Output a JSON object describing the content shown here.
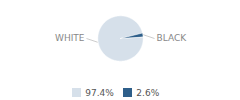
{
  "chart_data": {
    "type": "pie",
    "categories": [
      "WHITE",
      "BLACK"
    ],
    "values": [
      97.4,
      2.6
    ],
    "value_labels": [
      "97.4%",
      "2.6%"
    ],
    "colors": [
      "#d6e0ea",
      "#2e5f8a"
    ],
    "legend": "bottom"
  }
}
